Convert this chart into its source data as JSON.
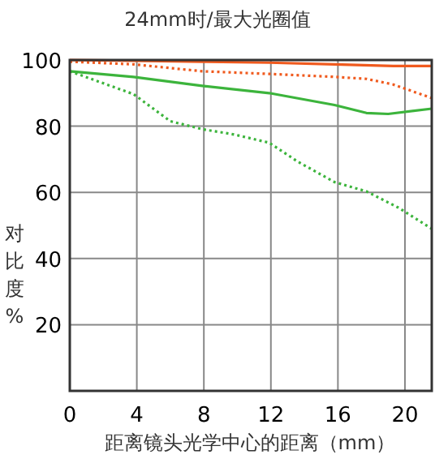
{
  "chart_data": {
    "type": "line",
    "title": "24mm时/最大光圈值",
    "xlabel": "距离镜头光学中心的距离（mm）",
    "ylabel": "对比度%",
    "xlim": [
      0,
      21.6
    ],
    "ylim": [
      0,
      100
    ],
    "xticks": [
      0,
      4,
      8,
      12,
      16,
      20
    ],
    "yticks": [
      20,
      40,
      60,
      80,
      100
    ],
    "grid": true,
    "series": [
      {
        "color": "#f05a1e",
        "line_style": "solid",
        "x": [
          0,
          3.8,
          7.9,
          11.9,
          15.8,
          19.3,
          21.6
        ],
        "values": [
          100,
          99.8,
          99.5,
          99.2,
          98.7,
          98.2,
          98.2
        ]
      },
      {
        "color": "#f05a1e",
        "line_style": "dotted",
        "x": [
          0,
          3.8,
          7.9,
          11.9,
          15.8,
          17.7,
          19.3,
          21.6
        ],
        "values": [
          99.5,
          98.7,
          96.6,
          95.8,
          94.9,
          94.3,
          92.6,
          88.5
        ]
      },
      {
        "color": "#3cb43c",
        "line_style": "solid",
        "x": [
          0,
          3.8,
          7.9,
          11.9,
          15.8,
          17.7,
          19,
          21.6
        ],
        "values": [
          96.6,
          94.9,
          92.2,
          90,
          86.4,
          84,
          83.7,
          85.3
        ]
      },
      {
        "color": "#3cb43c",
        "line_style": "dotted",
        "x": [
          0,
          3.8,
          6,
          7.9,
          9.8,
          11.9,
          13.6,
          15.8,
          17.7,
          19.6,
          21.6
        ],
        "values": [
          96.6,
          89.7,
          81.5,
          79.1,
          77.5,
          75,
          69.3,
          63.1,
          60.3,
          55.4,
          49
        ]
      }
    ]
  }
}
